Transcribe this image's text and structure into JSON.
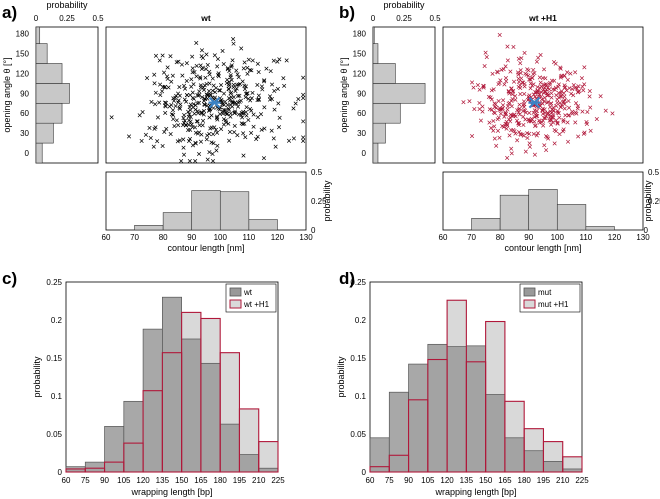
{
  "colors": {
    "wt": "#000000",
    "h1": "#b0183a",
    "mean": "#3b82c4",
    "hist_gray": "#c8c8c8",
    "bar_dark": "#999999",
    "bar_light": "#d9d9d9",
    "bar_red": "#b0183a"
  },
  "chart_data": [
    {
      "id": "a",
      "type": "scatter",
      "letter": "a)",
      "title": "wt",
      "marker_color": "#000000",
      "xlim": [
        60,
        130
      ],
      "ylim": [
        -15,
        190
      ],
      "n_points": 420,
      "mean": {
        "x": 98,
        "y": 76
      },
      "spread": {
        "x": 12,
        "y": 38
      },
      "seed": 7,
      "side_hist": {
        "label": "probability",
        "ticks": [
          "0",
          "0.25",
          "0.5"
        ],
        "xlim": [
          0,
          0.5
        ],
        "bins": [
          -15,
          15,
          45,
          75,
          105,
          135,
          165,
          195
        ],
        "values": [
          0.05,
          0.14,
          0.21,
          0.27,
          0.21,
          0.09,
          0.03
        ]
      },
      "bottom_hist": {
        "label": "probability",
        "ticks": [
          "0",
          "0.25",
          "0.5"
        ],
        "ylim": [
          0,
          0.5
        ],
        "bins": [
          70,
          80,
          90,
          100,
          110,
          120
        ],
        "values": [
          0.04,
          0.15,
          0.34,
          0.33,
          0.09
        ]
      },
      "ylabel": "opening angle θ [°]",
      "yticks": [
        "0",
        "30",
        "60",
        "90",
        "120",
        "150",
        "180"
      ],
      "xlabel": "contour length [nm]",
      "xticks": [
        "60",
        "70",
        "80",
        "90",
        "100",
        "110",
        "120",
        "130"
      ]
    },
    {
      "id": "b",
      "type": "scatter",
      "letter": "b)",
      "title": "wt +H1",
      "marker_color": "#b0183a",
      "xlim": [
        60,
        130
      ],
      "ylim": [
        -15,
        190
      ],
      "n_points": 420,
      "mean": {
        "x": 92,
        "y": 76
      },
      "spread": {
        "x": 10,
        "y": 32
      },
      "seed": 19,
      "side_hist": {
        "label": "probability",
        "ticks": [
          "0",
          "0.25",
          "0.5"
        ],
        "xlim": [
          0,
          0.5
        ],
        "bins": [
          -15,
          15,
          45,
          75,
          105,
          135,
          165,
          195
        ],
        "values": [
          0.04,
          0.1,
          0.22,
          0.42,
          0.18,
          0.04,
          0.01
        ]
      },
      "bottom_hist": {
        "label": "probability",
        "ticks": [
          "0",
          "0.25",
          "0.5"
        ],
        "ylim": [
          0,
          0.5
        ],
        "bins": [
          70,
          80,
          90,
          100,
          110,
          120
        ],
        "values": [
          0.1,
          0.3,
          0.35,
          0.22,
          0.03
        ]
      },
      "ylabel": "opening angle θ [°]",
      "yticks": [
        "0",
        "30",
        "60",
        "90",
        "120",
        "150",
        "180"
      ],
      "xlabel": "contour length [nm]",
      "xticks": [
        "60",
        "70",
        "80",
        "90",
        "100",
        "110",
        "120",
        "130"
      ]
    },
    {
      "id": "c",
      "type": "bar",
      "letter": "c)",
      "xlim": [
        60,
        225
      ],
      "ylim": [
        0,
        0.25
      ],
      "bin_edges": [
        60,
        75,
        90,
        105,
        120,
        135,
        150,
        165,
        180,
        195,
        210,
        225
      ],
      "xticks": [
        "60",
        "75",
        "90",
        "105",
        "120",
        "135",
        "150",
        "165",
        "180",
        "195",
        "210",
        "225"
      ],
      "yticks": [
        "0",
        "0.05",
        "0.1",
        "0.15",
        "0.2",
        "0.25"
      ],
      "xlabel": "wrapping length [bp]",
      "ylabel": "probability",
      "legend_position": "top-right",
      "series": [
        {
          "name": "wt",
          "values": [
            0.007,
            0.013,
            0.06,
            0.093,
            0.188,
            0.23,
            0.175,
            0.143,
            0.063,
            0.023,
            0.005
          ],
          "fill": "#999999",
          "stroke": "#555555"
        },
        {
          "name": "wt +H1",
          "values": [
            0.004,
            0.005,
            0.013,
            0.038,
            0.107,
            0.157,
            0.21,
            0.202,
            0.157,
            0.083,
            0.04
          ],
          "fill": "#d9d9d9",
          "stroke": "#b0183a"
        }
      ]
    },
    {
      "id": "d",
      "type": "bar",
      "letter": "d)",
      "xlim": [
        60,
        225
      ],
      "ylim": [
        0,
        0.25
      ],
      "bin_edges": [
        60,
        75,
        90,
        105,
        120,
        135,
        150,
        165,
        180,
        195,
        210,
        225
      ],
      "xticks": [
        "60",
        "75",
        "90",
        "105",
        "120",
        "135",
        "150",
        "165",
        "180",
        "195",
        "210",
        "225"
      ],
      "yticks": [
        "0",
        "0.05",
        "0.1",
        "0.15",
        "0.2",
        "0.25"
      ],
      "xlabel": "wrapping length [bp]",
      "ylabel": "probability",
      "legend_position": "top-right",
      "series": [
        {
          "name": "mut",
          "values": [
            0.045,
            0.105,
            0.142,
            0.168,
            0.165,
            0.166,
            0.102,
            0.045,
            0.028,
            0.014,
            0.004
          ],
          "fill": "#999999",
          "stroke": "#555555"
        },
        {
          "name": "mut +H1",
          "values": [
            0.007,
            0.022,
            0.095,
            0.148,
            0.226,
            0.145,
            0.198,
            0.093,
            0.057,
            0.04,
            0.02
          ],
          "fill": "#d9d9d9",
          "stroke": "#b0183a"
        }
      ]
    }
  ]
}
